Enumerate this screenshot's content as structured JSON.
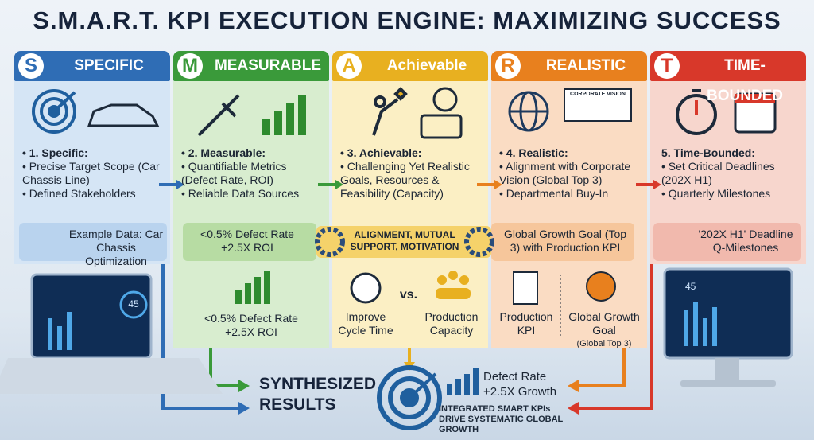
{
  "title": "S.M.A.R.T. KPI EXECUTION ENGINE: MAXIMIZING SUCCESS",
  "columns": [
    {
      "letter": "S",
      "header": "SPECIFIC",
      "heading": "• 1. Specific:",
      "bullets": [
        "• Precise Target Scope (Car Chassis Line)",
        "• Defined Stakeholders"
      ],
      "example": [
        "Example Data: Car Chassis Optimization"
      ]
    },
    {
      "letter": "M",
      "header": "MEASURABLE",
      "heading": "• 2. Measurable:",
      "bullets": [
        "• Quantifiable Metrics (Defect Rate, ROI)",
        "• Reliable Data Sources"
      ],
      "example": [
        "<0.5% Defect Rate",
        "+2.5X ROI"
      ],
      "lower": [
        "<0.5% Defect Rate",
        "+2.5X ROI"
      ]
    },
    {
      "letter": "A",
      "header": "Achievable",
      "heading": "• 3. Achievable:",
      "bullets": [
        "• Challenging Yet Realistic Goals, Resources & Feasibility (Capacity)"
      ],
      "example": [
        "ALIGNMENT, MUTUAL SUPPORT, MOTIVATION"
      ],
      "lower": [
        "Improve Cycle Time",
        "vs.",
        "Production Capacity"
      ]
    },
    {
      "letter": "R",
      "header": "REALISTIC",
      "icon_label": "CORPORATE VISION",
      "heading": "• 4. Realistic:",
      "bullets": [
        "• Alignment with Corporate Vision (Global Top 3)",
        "• Departmental Buy-In"
      ],
      "example": [
        "Global Growth Goal (Top 3) with Production KPI"
      ],
      "lower": [
        "Production KPI",
        "Global Growth Goal",
        "(Global Top 3)"
      ]
    },
    {
      "letter": "T",
      "header": "TIME-BOUNDED",
      "heading": "5. Time-Bounded:",
      "bullets": [
        "• Set Critical Deadlines (202X H1)",
        "• Quarterly Milestones"
      ],
      "example": [
        "'202X H1' Deadline",
        "Q-Milestones"
      ]
    }
  ],
  "screen_value": "45",
  "results": {
    "title": "SYNTHESIZED RESULTS",
    "metrics": [
      "Defect Rate",
      "+2.5X Growth"
    ],
    "caption": "INTEGRATED SMART KPIs DRIVE SYSTEMATIC GLOBAL GROWTH"
  }
}
